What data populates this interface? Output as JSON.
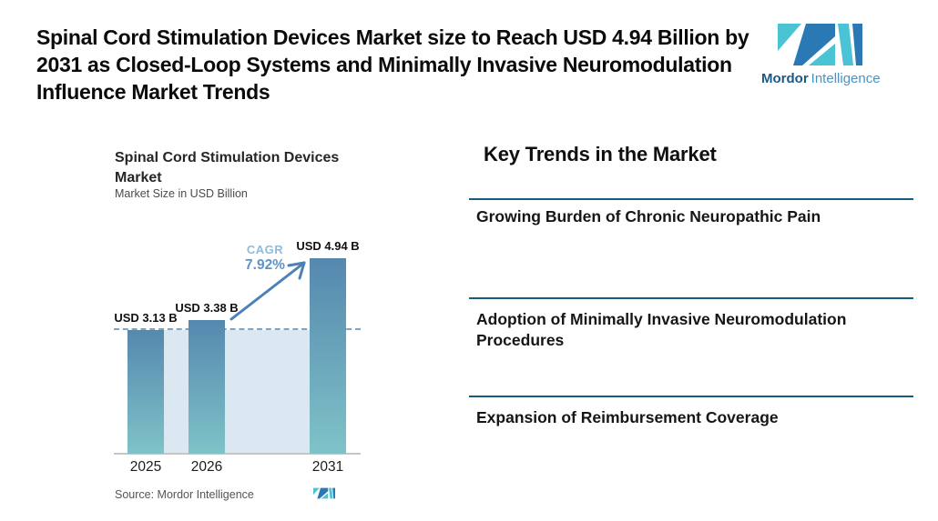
{
  "header": {
    "title": "Spinal Cord Stimulation Devices Market size to Reach USD 4.94 Billion by 2031 as Closed-Loop Systems and Minimally Invasive Neuromodulation Influence Market Trends"
  },
  "brand": {
    "name_bold": "Mordor",
    "name_light": "Intelligence",
    "teal": "#4ac4d5",
    "blue": "#2a79b5"
  },
  "chart": {
    "title_line1": "Spinal Cord Stimulation Devices",
    "title_line2": "Market",
    "subtitle": "Market Size in USD Billion",
    "cagr_label": "CAGR",
    "cagr_value": "7.92%",
    "source": "Source: Mordor Intelligence"
  },
  "chart_data": {
    "type": "bar",
    "title": "Spinal Cord Stimulation Devices Market",
    "ylabel": "Market Size in USD Billion",
    "categories": [
      "2025",
      "2026",
      "2031"
    ],
    "values": [
      3.13,
      3.38,
      4.94
    ],
    "value_labels": [
      "USD 3.13 B",
      "USD 3.38 B",
      "USD 4.94 B"
    ],
    "cagr_percent": 7.92,
    "baseline_value": 3.13,
    "ylim": [
      0,
      4.94
    ],
    "grid": false,
    "colors": {
      "bar_top": "#5588ae",
      "bar_bottom": "#7fc3c8",
      "plot_bg": "#dce8f1",
      "dashed_line": "#78a6cb",
      "arrow": "#4b81b6"
    }
  },
  "trends": {
    "heading": "Key Trends in the Market",
    "items": [
      {
        "label": "Growing Burden of Chronic Neuropathic Pain"
      },
      {
        "label": "Adoption of Minimally Invasive Neuromodulation Procedures"
      },
      {
        "label": "Expansion of Reimbursement Coverage"
      }
    ]
  }
}
